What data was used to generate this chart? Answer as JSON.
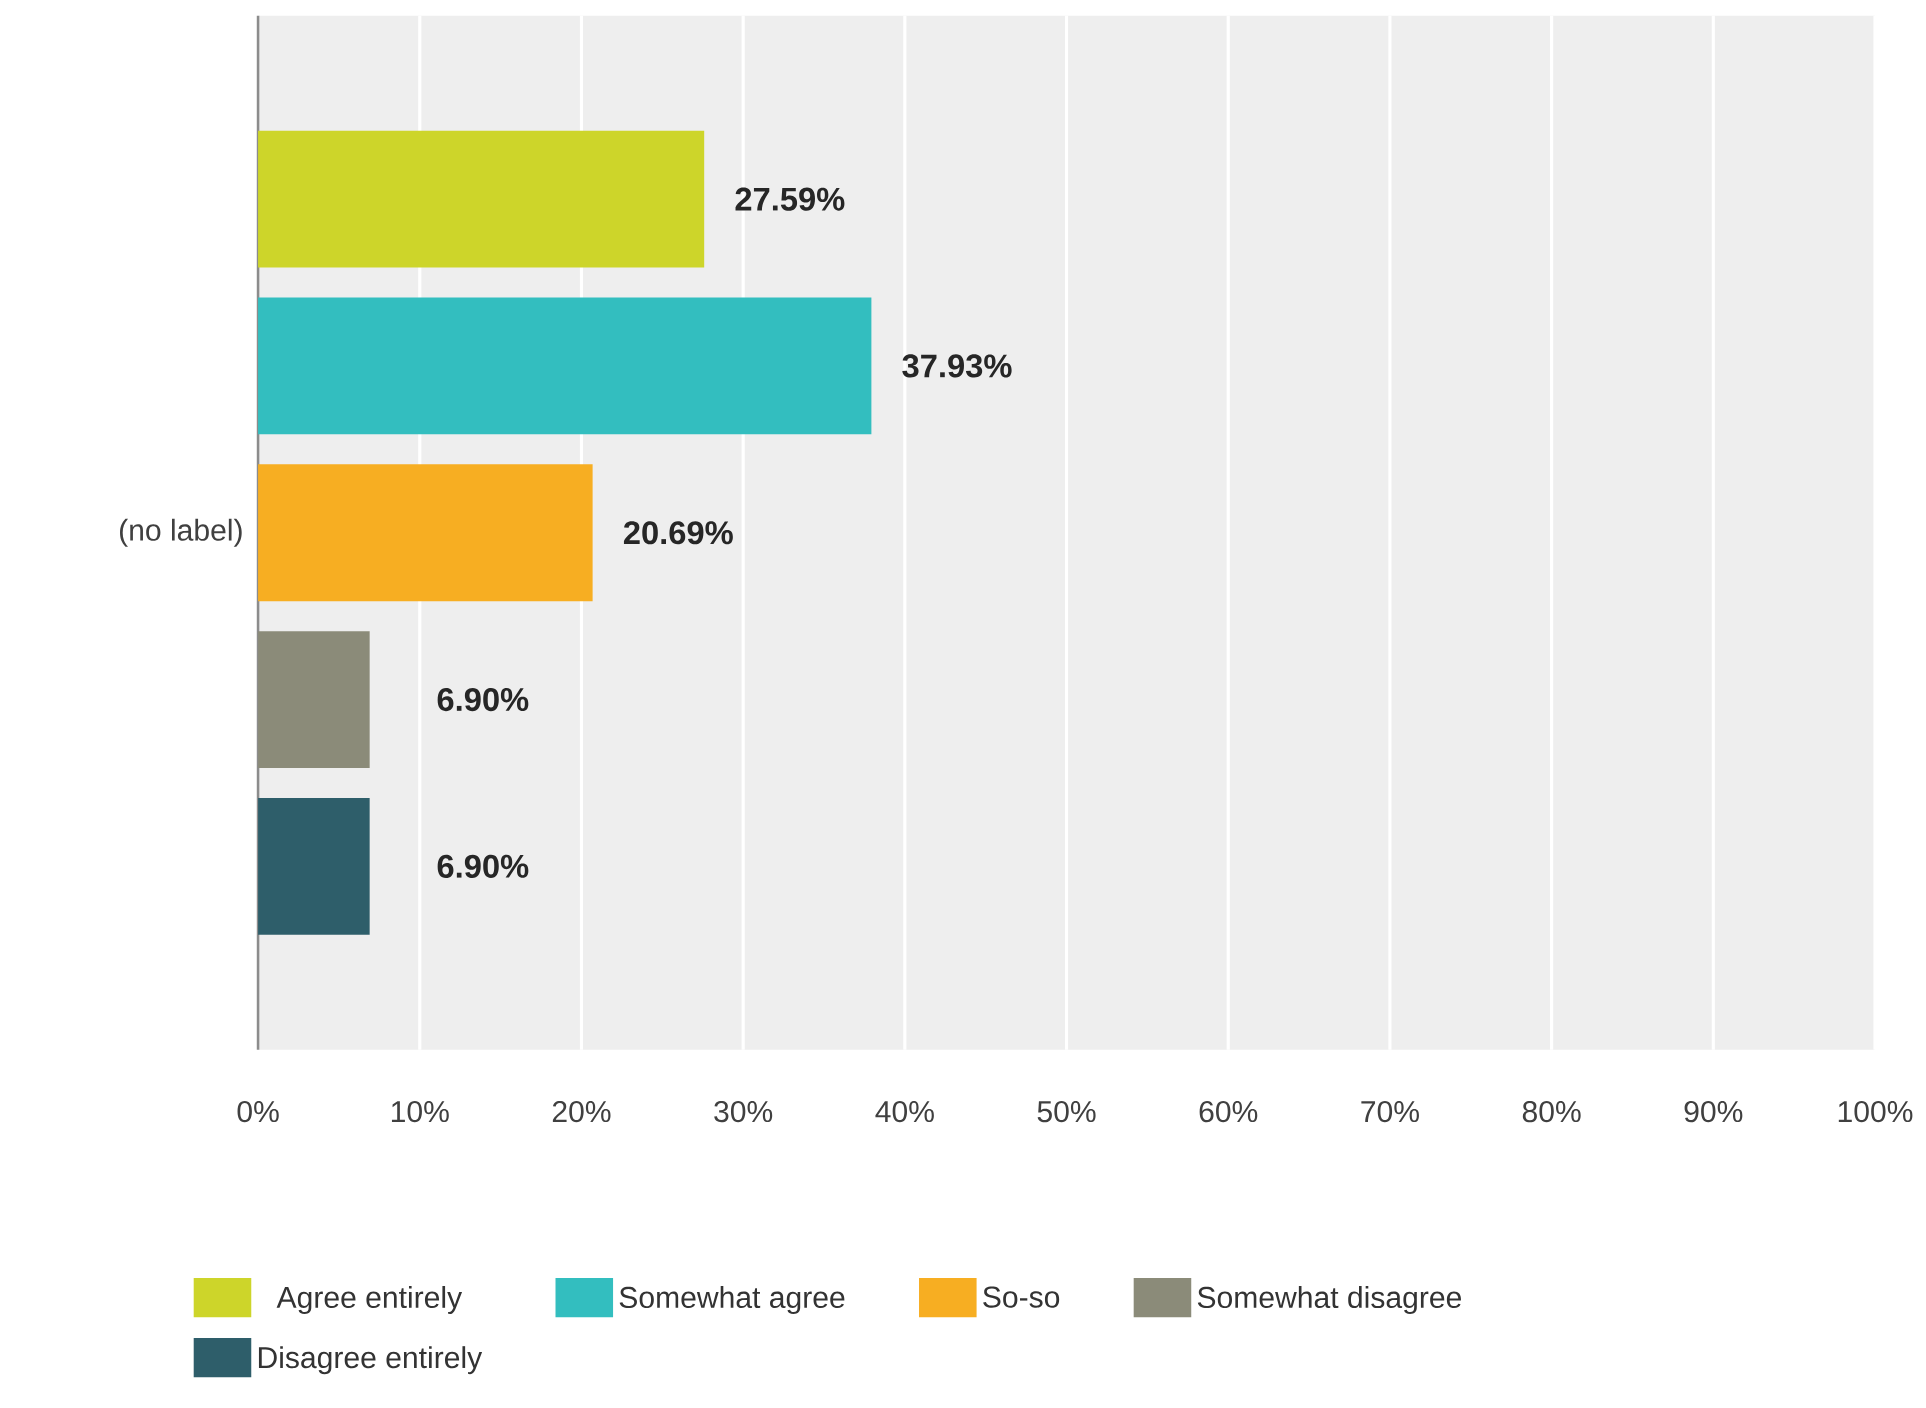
{
  "chart_data": {
    "type": "bar",
    "orientation": "horizontal",
    "categories": [
      "(no label)"
    ],
    "series": [
      {
        "name": "Agree entirely",
        "color": "#cdd52a",
        "values": [
          27.59
        ],
        "value_labels": [
          "27.59%"
        ]
      },
      {
        "name": "Somewhat agree",
        "color": "#33bebf",
        "values": [
          37.93
        ],
        "value_labels": [
          "37.93%"
        ]
      },
      {
        "name": "So-so",
        "color": "#f7ae22",
        "values": [
          20.69
        ],
        "value_labels": [
          "20.69%"
        ]
      },
      {
        "name": "Somewhat disagree",
        "color": "#8b8b79",
        "values": [
          6.9
        ],
        "value_labels": [
          "6.90%"
        ]
      },
      {
        "name": "Disagree entirely",
        "color": "#2e5e6a",
        "values": [
          6.9
        ],
        "value_labels": [
          "6.90%"
        ]
      }
    ],
    "xlim": [
      0,
      100
    ],
    "xticks": [
      {
        "value": 0,
        "label": "0%"
      },
      {
        "value": 10,
        "label": "10%"
      },
      {
        "value": 20,
        "label": "20%"
      },
      {
        "value": 30,
        "label": "30%"
      },
      {
        "value": 40,
        "label": "40%"
      },
      {
        "value": 50,
        "label": "50%"
      },
      {
        "value": 60,
        "label": "60%"
      },
      {
        "value": 70,
        "label": "70%"
      },
      {
        "value": 80,
        "label": "80%"
      },
      {
        "value": 90,
        "label": "90%"
      },
      {
        "value": 100,
        "label": "100%"
      }
    ],
    "grid": "x",
    "legend": "bottom"
  }
}
